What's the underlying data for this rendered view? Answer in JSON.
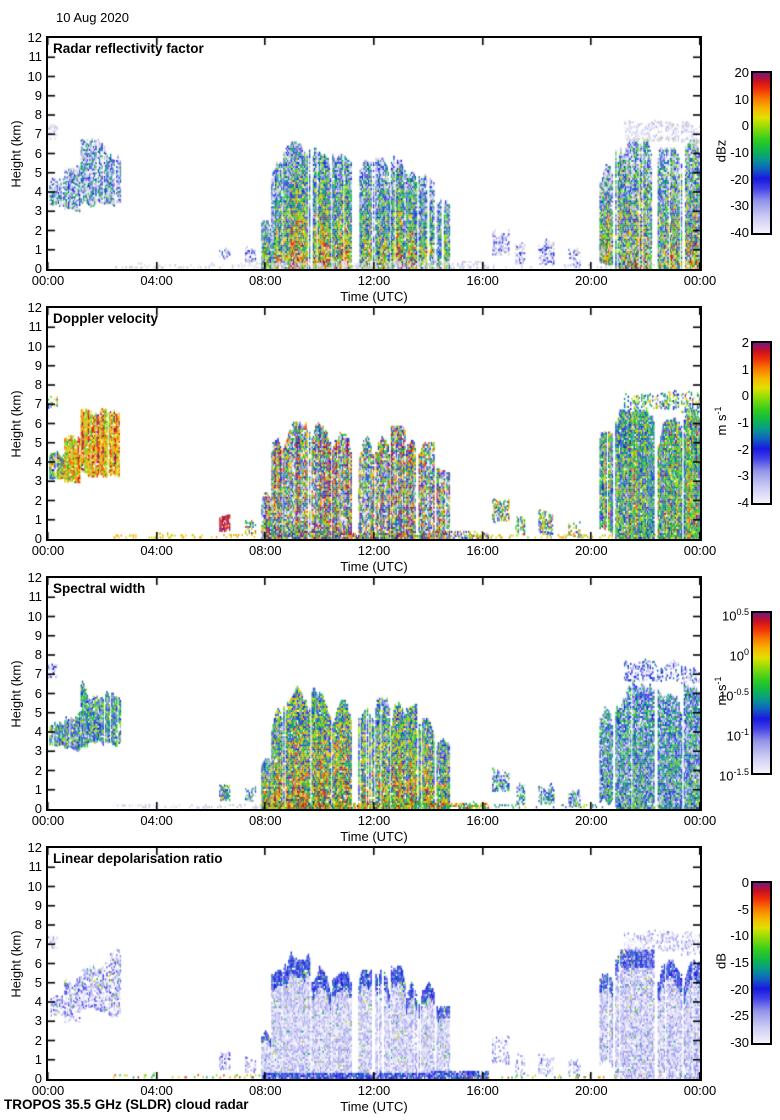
{
  "date_label": "10 Aug 2020",
  "footer": "TROPOS 35.5 GHz (SLDR) cloud radar",
  "axis": {
    "xlabel": "Time (UTC)",
    "ylabel": "Height (km)",
    "xticks": [
      "00:00",
      "04:00",
      "08:00",
      "12:00",
      "16:00",
      "20:00",
      "00:00"
    ],
    "yticks": [
      "0",
      "1",
      "2",
      "3",
      "4",
      "5",
      "6",
      "7",
      "8",
      "9",
      "10",
      "11",
      "12"
    ]
  },
  "colors": {
    "background": "#ffffff",
    "axis": "#000000",
    "nosignal_gray": "#c9c9c9",
    "colormap_stops": [
      [
        0.0,
        "#f4f2fc"
      ],
      [
        0.1,
        "#ccccf4"
      ],
      [
        0.2,
        "#9494ea"
      ],
      [
        0.28,
        "#4040e8"
      ],
      [
        0.34,
        "#1818e0"
      ],
      [
        0.4,
        "#1060c0"
      ],
      [
        0.46,
        "#089890"
      ],
      [
        0.52,
        "#10b848"
      ],
      [
        0.58,
        "#30cc20"
      ],
      [
        0.66,
        "#90dc08"
      ],
      [
        0.72,
        "#e0e000"
      ],
      [
        0.78,
        "#f8b400"
      ],
      [
        0.84,
        "#f87800"
      ],
      [
        0.9,
        "#f03008"
      ],
      [
        0.95,
        "#c81020"
      ],
      [
        1.0,
        "#781880"
      ]
    ]
  },
  "panels": [
    {
      "id": "reflectivity",
      "title": "Radar reflectivity factor",
      "colorbar": {
        "unit": {
          "text": "dBz",
          "sup": ""
        },
        "ticks": [
          {
            "t": "20",
            "sup": ""
          },
          {
            "t": "10",
            "sup": ""
          },
          {
            "t": "0",
            "sup": ""
          },
          {
            "t": "-10",
            "sup": ""
          },
          {
            "t": "-20",
            "sup": ""
          },
          {
            "t": "-30",
            "sup": ""
          },
          {
            "t": "-40",
            "sup": ""
          }
        ]
      },
      "render": {
        "wisp": {
          "b": 0.05,
          "n": 0.1,
          "d": 0.5,
          "gray": 0.55
        },
        "morning": {
          "b": 0.2,
          "g": 0.12,
          "n": 0.34,
          "d": 0.92,
          "gray": 0.22
        },
        "dashes": {
          "b": 0.03,
          "n": 0.06,
          "d": 0.3,
          "gray": 0.75,
          "skip": 0
        },
        "lowblob": {
          "b": 0.18,
          "n": 0.25,
          "d": 0.55,
          "gray": 0.3
        },
        "specks": {
          "b": 0.16,
          "n": 0.22,
          "d": 0.6,
          "gray": 0.35
        },
        "cell": {
          "b": 0.22,
          "g": 0.5,
          "n": 0.3,
          "d": 0.95,
          "gray": 0.15,
          "s": 0.1
        },
        "cellstrong": {
          "b": 0.3,
          "g": 0.58,
          "n": 0.3,
          "d": 0.97,
          "gray": 0.12,
          "s": 0.1
        },
        "basestrip": {
          "b": 0.05,
          "n": 0.12,
          "d": 0.4,
          "gray": 0.6,
          "skip": 0
        },
        "dots": {
          "b": 0.06,
          "n": 0.12,
          "d": 0.18,
          "gray": 0.5,
          "skip": 0
        },
        "evening": {
          "b": 0.28,
          "g": 0.42,
          "n": 0.34,
          "d": 0.95,
          "gray": 0.18,
          "s": 0.12
        }
      }
    },
    {
      "id": "velocity",
      "title": "Doppler velocity",
      "colorbar": {
        "unit": {
          "text": "m s",
          "sup": "-1"
        },
        "ticks": [
          {
            "t": "2",
            "sup": ""
          },
          {
            "t": "1",
            "sup": ""
          },
          {
            "t": "0",
            "sup": ""
          },
          {
            "t": "-1",
            "sup": ""
          },
          {
            "t": "-2",
            "sup": ""
          },
          {
            "t": "-3",
            "sup": ""
          },
          {
            "t": "-4",
            "sup": ""
          }
        ]
      },
      "render": {
        "wisp": {
          "b": 0.5,
          "n": 0.3,
          "d": 0.4
        },
        "morning": {
          "b": 0.78,
          "n": 0.16,
          "d": 0.9,
          "s": 0.12
        },
        "dashes": {
          "b": 0.76,
          "n": 0.08,
          "d": 0.25,
          "skip": 0
        },
        "lowblob": {
          "b": 0.95,
          "n": 0.06,
          "d": 0.85
        },
        "specks": {
          "b": 0.55,
          "n": 0.35,
          "d": 0.6
        },
        "cell": {
          "b": 0.5,
          "n": 0.48,
          "d": 0.93,
          "s": 0.3
        },
        "cellstrong": {
          "b": 0.52,
          "g": 0.05,
          "n": 0.5,
          "d": 0.95,
          "s": 0.3
        },
        "basestrip": {
          "b": 0.6,
          "n": 0.45,
          "d": 0.5,
          "skip": 0
        },
        "dots": {
          "b": 0.74,
          "n": 0.12,
          "d": 0.18,
          "skip": 0
        },
        "evening": {
          "b": 0.5,
          "g": 0.05,
          "n": 0.26,
          "d": 0.93,
          "s": 0.18
        }
      }
    },
    {
      "id": "width",
      "title": "Spectral width",
      "colorbar": {
        "unit": {
          "text": "m s",
          "sup": "-1"
        },
        "ticks": [
          {
            "t": "10",
            "sup": "0.5"
          },
          {
            "t": "10",
            "sup": "0"
          },
          {
            "t": "10",
            "sup": "-0.5"
          },
          {
            "t": "10",
            "sup": "-1"
          },
          {
            "t": "10",
            "sup": "-1.5"
          }
        ]
      },
      "render": {
        "wisp": {
          "b": 0.25,
          "n": 0.2,
          "d": 0.4,
          "gray": 0.15
        },
        "morning": {
          "b": 0.42,
          "n": 0.28,
          "d": 0.9
        },
        "dashes": {
          "b": 0.05,
          "n": 0.1,
          "d": 0.3,
          "gray": 0.6,
          "skip": 0
        },
        "lowblob": {
          "b": 0.5,
          "n": 0.3,
          "d": 0.8
        },
        "specks": {
          "b": 0.35,
          "n": 0.3,
          "d": 0.6
        },
        "cell": {
          "b": 0.4,
          "g": 0.3,
          "n": 0.32,
          "d": 0.93
        },
        "cellstrong": {
          "b": 0.45,
          "g": 0.33,
          "n": 0.32,
          "d": 0.95
        },
        "basestrip": {
          "b": 0.68,
          "n": 0.3,
          "d": 0.55,
          "skip": 0
        },
        "dots": {
          "b": 0.5,
          "n": 0.3,
          "d": 0.18,
          "skip": 0
        },
        "evening": {
          "b": 0.29,
          "g": 0.12,
          "n": 0.3,
          "d": 0.93
        }
      }
    },
    {
      "id": "ldr",
      "title": "Linear depolarisation ratio",
      "colorbar": {
        "unit": {
          "text": "dB",
          "sup": ""
        },
        "ticks": [
          {
            "t": "0",
            "sup": ""
          },
          {
            "t": "-5",
            "sup": ""
          },
          {
            "t": "-10",
            "sup": ""
          },
          {
            "t": "-15",
            "sup": ""
          },
          {
            "t": "-20",
            "sup": ""
          },
          {
            "t": "-25",
            "sup": ""
          },
          {
            "t": "-30",
            "sup": ""
          }
        ]
      },
      "render": {
        "wisp": {
          "b": 0.1,
          "n": 0.12,
          "d": 0.4
        },
        "morning": {
          "b": 0.14,
          "n": 0.16,
          "d": 0.6,
          "spk": 0.04
        },
        "dashes": {
          "b": 0.7,
          "n": 0.25,
          "d": 0.12,
          "skip": 0
        },
        "lowblob": {
          "b": 0.15,
          "n": 0.15,
          "d": 0.5
        },
        "specks": {
          "b": 0.12,
          "n": 0.15,
          "d": 0.5
        },
        "cell": {
          "b": 0.09,
          "n": 0.12,
          "d": 0.9,
          "edge": 0.22,
          "spk": 0.025
        },
        "cellstrong": {
          "b": 0.09,
          "n": 0.12,
          "d": 0.92,
          "edge": 0.22,
          "spk": 0.025
        },
        "basestrip": {
          "b": 0.32,
          "n": 0.12,
          "d": 0.8,
          "skip": 0
        },
        "dots": {
          "b": 0.68,
          "n": 0.28,
          "d": 0.18,
          "skip": 0
        },
        "evening": {
          "b": 0.1,
          "n": 0.13,
          "d": 0.9,
          "edge": 0.2,
          "spk": 0.02
        }
      }
    }
  ],
  "chart_data": {
    "type": "heatmap",
    "title": "10 Aug 2020",
    "instrument": "TROPOS 35.5 GHz (SLDR) cloud radar",
    "x": {
      "label": "Time (UTC)",
      "range_hours": [
        0,
        24
      ],
      "ticks": [
        "00:00",
        "04:00",
        "08:00",
        "12:00",
        "16:00",
        "20:00",
        "00:00"
      ]
    },
    "y": {
      "label": "Height (km)",
      "range_km": [
        0,
        12
      ],
      "tick_step_km": 1
    },
    "panels": [
      {
        "title": "Radar reflectivity factor",
        "unit": "dBz",
        "scale": "linear",
        "range": [
          -40,
          20
        ],
        "colorbar_ticks": [
          20,
          10,
          0,
          -10,
          -20,
          -30,
          -40
        ],
        "legend_position": "right"
      },
      {
        "title": "Doppler velocity",
        "unit": "m s-1",
        "scale": "linear",
        "range": [
          -4,
          2
        ],
        "colorbar_ticks": [
          2,
          1,
          0,
          -1,
          -2,
          -3,
          -4
        ],
        "legend_position": "right"
      },
      {
        "title": "Spectral width",
        "unit": "m s-1",
        "scale": "log10",
        "range_log10": [
          -1.5,
          0.5
        ],
        "colorbar_ticks_log10": [
          0.5,
          0,
          -0.5,
          -1,
          -1.5
        ],
        "legend_position": "right"
      },
      {
        "title": "Linear depolarisation ratio",
        "unit": "dB",
        "scale": "linear",
        "range": [
          -30,
          0
        ],
        "colorbar_ticks": [
          0,
          -5,
          -10,
          -15,
          -20,
          -25,
          -30
        ],
        "legend_position": "right"
      }
    ],
    "feature_values": {
      "morning_stratiform_cloud": {
        "time_utc": [
          0.1,
          2.6
        ],
        "height_km": [
          3.0,
          6.7
        ],
        "reflectivity_dBZ": [
          -38,
          -12
        ],
        "doppler_velocity_ms": [
          0.3,
          1.6
        ],
        "spectral_width_ms": [
          0.1,
          0.4
        ],
        "ldr_dB": [
          -28,
          -20
        ]
      },
      "low_level_blob": {
        "time_utc": [
          6.3,
          6.7
        ],
        "height_km": [
          0.35,
          1.35
        ],
        "reflectivity_dBZ": [
          -30,
          -20
        ],
        "doppler_velocity_ms": [
          1.6,
          2.0
        ],
        "spectral_width_ms": [
          0.2,
          0.6
        ],
        "ldr_dB": [
          -26,
          -22
        ]
      },
      "midday_convective_cells": {
        "time_utc": [
          7.9,
          14.8
        ],
        "height_km": [
          0,
          6.6
        ],
        "reflectivity_dBZ": [
          -30,
          18
        ],
        "doppler_velocity_ms": [
          -3.5,
          1.5
        ],
        "spectral_width_ms": [
          0.15,
          1.5
        ],
        "ldr_dB": [
          -28,
          -18
        ]
      },
      "surface_drizzle_debris": {
        "time_utc": [
          2.4,
          16.2
        ],
        "height_km": [
          0,
          0.4
        ],
        "reflectivity_dBZ": [
          -40,
          -35
        ],
        "spectral_width_ms": [
          0.5,
          1.2
        ],
        "ldr_dB": [
          -12,
          -5
        ]
      },
      "evening_system": {
        "time_utc": [
          20.3,
          24.0
        ],
        "height_km": [
          0,
          7.8
        ],
        "reflectivity_dBZ": [
          -32,
          12
        ],
        "doppler_velocity_ms": [
          -1.5,
          0.5
        ],
        "spectral_width_ms": [
          0.1,
          0.8
        ],
        "ldr_dB": [
          -28,
          -20
        ]
      }
    },
    "echo_shapes": [
      {
        "id": "wisp-00",
        "cat": "wisp",
        "t": [
          -0.05,
          0.35
        ],
        "h": [
          6.7,
          7.5
        ]
      },
      {
        "id": "morning-a",
        "cat": "morning",
        "t": [
          0.05,
          0.55
        ],
        "h": [
          3.1,
          4.7
        ],
        "ov": {
          "velocity": {
            "b": 0.55,
            "n": 0.3
          }
        }
      },
      {
        "id": "morning-b",
        "cat": "morning",
        "t": [
          0.6,
          1.15
        ],
        "h": [
          2.9,
          5.3
        ]
      },
      {
        "id": "morning-c",
        "cat": "morning",
        "t": [
          1.2,
          2.65
        ],
        "h": [
          3.2,
          6.7
        ]
      },
      {
        "id": "dash-early",
        "cat": "dashes",
        "t": [
          2.4,
          7.8
        ],
        "h": [
          0.02,
          0.24
        ]
      },
      {
        "id": "purple-blob",
        "cat": "lowblob",
        "t": [
          6.3,
          6.7
        ],
        "h": [
          0.35,
          1.35
        ]
      },
      {
        "id": "speck-0730",
        "cat": "specks",
        "t": [
          7.25,
          7.65
        ],
        "h": [
          0.25,
          1.15
        ]
      },
      {
        "id": "cell-1",
        "cat": "cell",
        "t": [
          7.85,
          8.18
        ],
        "h": [
          0,
          2.6
        ]
      },
      {
        "id": "cell-2",
        "cat": "cell",
        "t": [
          8.22,
          8.62
        ],
        "h": [
          0,
          5.6
        ]
      },
      {
        "id": "cell-3",
        "cat": "cellstrong",
        "t": [
          8.66,
          9.62
        ],
        "h": [
          0,
          6.6
        ]
      },
      {
        "id": "cell-4",
        "cat": "cellstrong",
        "t": [
          9.7,
          10.38
        ],
        "h": [
          0,
          6.2
        ]
      },
      {
        "id": "cell-5",
        "cat": "cellstrong",
        "t": [
          10.46,
          11.18
        ],
        "h": [
          0,
          5.9
        ]
      },
      {
        "id": "cell-6",
        "cat": "cell",
        "t": [
          11.42,
          11.96
        ],
        "h": [
          0,
          5.6
        ]
      },
      {
        "id": "cell-7",
        "cat": "cell",
        "t": [
          12.05,
          12.55
        ],
        "h": [
          0,
          5.7
        ]
      },
      {
        "id": "cell-8",
        "cat": "cellstrong",
        "t": [
          12.62,
          13.12
        ],
        "h": [
          0,
          5.8
        ]
      },
      {
        "id": "cell-9",
        "cat": "cellstrong",
        "t": [
          13.18,
          13.58
        ],
        "h": [
          0,
          5.4
        ]
      },
      {
        "id": "cell-10",
        "cat": "cell",
        "t": [
          13.64,
          14.22
        ],
        "h": [
          0,
          5.0
        ]
      },
      {
        "id": "cell-11",
        "cat": "cell",
        "t": [
          14.3,
          14.78
        ],
        "h": [
          0,
          3.7
        ]
      },
      {
        "id": "drizzle-base",
        "cat": "basestrip",
        "t": [
          7.9,
          16.2
        ],
        "h": [
          0,
          0.35
        ]
      },
      {
        "id": "speck-1630",
        "cat": "specks",
        "t": [
          16.35,
          16.95
        ],
        "h": [
          0.7,
          2.3
        ]
      },
      {
        "id": "speck-1720",
        "cat": "specks",
        "t": [
          17.2,
          17.55
        ],
        "h": [
          0.1,
          1.3
        ]
      },
      {
        "id": "speck-1810",
        "cat": "specks",
        "t": [
          18.05,
          18.6
        ],
        "h": [
          0.05,
          1.5
        ]
      },
      {
        "id": "speck-1915",
        "cat": "specks",
        "t": [
          19.15,
          19.6
        ],
        "h": [
          0.05,
          1.0
        ]
      },
      {
        "id": "dots-late",
        "cat": "dots",
        "t": [
          15.3,
          24.0
        ],
        "h": [
          0.02,
          0.18
        ]
      },
      {
        "id": "evening-1",
        "cat": "evening",
        "t": [
          20.3,
          20.78
        ],
        "h": [
          0.2,
          5.6
        ]
      },
      {
        "id": "evening-2",
        "cat": "evening",
        "t": [
          20.88,
          22.32
        ],
        "h": [
          0,
          6.7
        ]
      },
      {
        "id": "evening-3",
        "cat": "evening",
        "t": [
          22.44,
          23.32
        ],
        "h": [
          0,
          6.3
        ]
      },
      {
        "id": "evening-4",
        "cat": "evening",
        "t": [
          23.4,
          24.05
        ],
        "h": [
          0,
          6.7
        ]
      },
      {
        "id": "anvil-a",
        "cat": "wisp",
        "t": [
          21.2,
          23.2
        ],
        "h": [
          6.6,
          7.8
        ]
      },
      {
        "id": "anvil-b",
        "cat": "wisp",
        "t": [
          23.3,
          24.05
        ],
        "h": [
          6.4,
          7.6
        ]
      }
    ]
  }
}
